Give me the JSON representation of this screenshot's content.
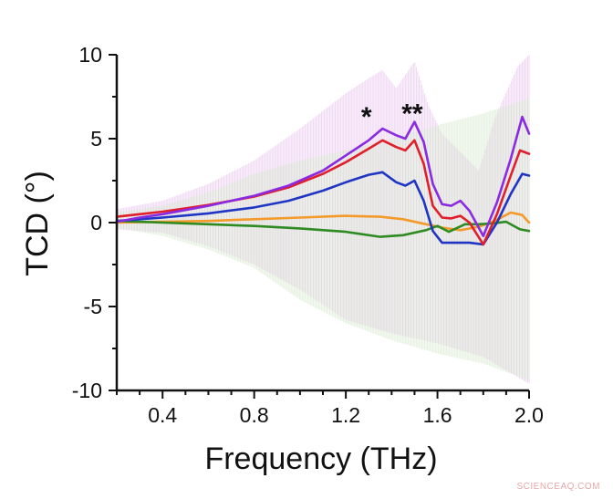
{
  "watermark": "SCIENCEAQ.COM",
  "colors": {
    "red": "#e01f2b",
    "purple": "#8a2be2",
    "blue": "#1f35c4",
    "orange": "#f39a2a",
    "green": "#2e8b22",
    "axis": "#111111"
  },
  "chart_data": {
    "type": "line",
    "xlabel": "Frequency (THz)",
    "ylabel": "TCD (°)",
    "xlim": [
      0.2,
      2.0
    ],
    "ylim": [
      -10,
      10
    ],
    "xticks": [
      0.4,
      0.8,
      1.2,
      1.6,
      2.0
    ],
    "xtick_labels": [
      "0.4",
      "0.8",
      "1.2",
      "1.6",
      "2.0"
    ],
    "yticks": [
      10,
      5,
      0,
      -5,
      -10
    ],
    "ytick_labels": [
      "10",
      "5",
      "0",
      "-5",
      "-10"
    ],
    "grid": false,
    "annotations": [
      {
        "text": "*",
        "x": 1.29,
        "y": 6.4
      },
      {
        "text": "**",
        "x": 1.49,
        "y": 6.6
      }
    ],
    "error_bands": [
      {
        "color": "#e4b8e9",
        "upper": [
          [
            0.2,
            0.8
          ],
          [
            0.4,
            1.3
          ],
          [
            0.6,
            2.3
          ],
          [
            0.8,
            3.7
          ],
          [
            1.0,
            5.6
          ],
          [
            1.2,
            7.7
          ],
          [
            1.3,
            8.6
          ],
          [
            1.36,
            9.1
          ],
          [
            1.42,
            8.0
          ],
          [
            1.5,
            9.6
          ],
          [
            1.56,
            7.0
          ],
          [
            1.62,
            5.3
          ],
          [
            1.7,
            4.2
          ],
          [
            1.78,
            3.1
          ],
          [
            1.85,
            6.2
          ],
          [
            1.95,
            9.3
          ],
          [
            2.0,
            10
          ]
        ],
        "lower": [
          [
            0.2,
            -0.4
          ],
          [
            0.4,
            -0.6
          ],
          [
            0.6,
            -1.4
          ],
          [
            0.8,
            -2.5
          ],
          [
            1.0,
            -4.0
          ],
          [
            1.2,
            -5.8
          ],
          [
            1.4,
            -6.6
          ],
          [
            1.6,
            -7.2
          ],
          [
            1.8,
            -8.0
          ],
          [
            2.0,
            -9.6
          ]
        ]
      },
      {
        "color": "#cfe6c6",
        "upper": [
          [
            0.2,
            0.6
          ],
          [
            0.4,
            1.0
          ],
          [
            0.6,
            1.8
          ],
          [
            0.8,
            2.9
          ],
          [
            1.0,
            3.7
          ],
          [
            1.2,
            4.3
          ],
          [
            1.4,
            5.0
          ],
          [
            1.6,
            5.8
          ],
          [
            1.8,
            6.5
          ],
          [
            2.0,
            7.4
          ]
        ],
        "lower": [
          [
            0.2,
            -0.3
          ],
          [
            0.4,
            -0.8
          ],
          [
            0.6,
            -1.6
          ],
          [
            0.8,
            -2.7
          ],
          [
            1.0,
            -4.6
          ],
          [
            1.2,
            -6.0
          ],
          [
            1.4,
            -7.0
          ],
          [
            1.6,
            -7.8
          ],
          [
            1.8,
            -8.4
          ],
          [
            2.0,
            -9.4
          ]
        ]
      }
    ],
    "series": [
      {
        "color": "#f39a2a",
        "points": [
          [
            0.2,
            0.0
          ],
          [
            0.4,
            0.05
          ],
          [
            0.6,
            0.1
          ],
          [
            0.8,
            0.2
          ],
          [
            1.0,
            0.3
          ],
          [
            1.2,
            0.4
          ],
          [
            1.35,
            0.35
          ],
          [
            1.45,
            0.2
          ],
          [
            1.55,
            -0.1
          ],
          [
            1.62,
            -0.3
          ],
          [
            1.7,
            -0.45
          ],
          [
            1.78,
            -0.25
          ],
          [
            1.85,
            0.1
          ],
          [
            1.92,
            0.6
          ],
          [
            1.97,
            0.45
          ],
          [
            2.0,
            0.0
          ]
        ]
      },
      {
        "color": "#2e8b22",
        "points": [
          [
            0.2,
            0.1
          ],
          [
            0.4,
            0.0
          ],
          [
            0.6,
            -0.1
          ],
          [
            0.8,
            -0.2
          ],
          [
            1.0,
            -0.35
          ],
          [
            1.2,
            -0.55
          ],
          [
            1.35,
            -0.85
          ],
          [
            1.45,
            -0.75
          ],
          [
            1.55,
            -0.45
          ],
          [
            1.6,
            -0.2
          ],
          [
            1.65,
            -0.55
          ],
          [
            1.72,
            -0.1
          ],
          [
            1.78,
            -0.1
          ],
          [
            1.84,
            -0.05
          ],
          [
            1.9,
            0.05
          ],
          [
            1.96,
            -0.4
          ],
          [
            2.0,
            -0.5
          ]
        ]
      },
      {
        "color": "#1f35c4",
        "points": [
          [
            0.2,
            0.1
          ],
          [
            0.3,
            0.2
          ],
          [
            0.4,
            0.3
          ],
          [
            0.6,
            0.55
          ],
          [
            0.8,
            0.9
          ],
          [
            0.95,
            1.3
          ],
          [
            1.1,
            1.9
          ],
          [
            1.2,
            2.4
          ],
          [
            1.3,
            2.85
          ],
          [
            1.36,
            3.0
          ],
          [
            1.42,
            2.4
          ],
          [
            1.46,
            2.2
          ],
          [
            1.5,
            2.5
          ],
          [
            1.54,
            1.3
          ],
          [
            1.58,
            -0.5
          ],
          [
            1.62,
            -1.2
          ],
          [
            1.68,
            -1.2
          ],
          [
            1.74,
            -1.2
          ],
          [
            1.8,
            -1.3
          ],
          [
            1.86,
            0.0
          ],
          [
            1.92,
            1.7
          ],
          [
            1.97,
            2.9
          ],
          [
            2.0,
            2.8
          ]
        ]
      },
      {
        "color": "#e01f2b",
        "points": [
          [
            0.2,
            0.35
          ],
          [
            0.3,
            0.5
          ],
          [
            0.4,
            0.65
          ],
          [
            0.5,
            0.85
          ],
          [
            0.6,
            1.05
          ],
          [
            0.8,
            1.55
          ],
          [
            0.95,
            2.1
          ],
          [
            1.1,
            2.9
          ],
          [
            1.2,
            3.6
          ],
          [
            1.3,
            4.4
          ],
          [
            1.36,
            4.9
          ],
          [
            1.42,
            4.5
          ],
          [
            1.46,
            4.3
          ],
          [
            1.5,
            4.9
          ],
          [
            1.54,
            3.5
          ],
          [
            1.58,
            1.0
          ],
          [
            1.62,
            0.3
          ],
          [
            1.66,
            0.25
          ],
          [
            1.7,
            0.4
          ],
          [
            1.74,
            0.0
          ],
          [
            1.8,
            -1.3
          ],
          [
            1.86,
            0.5
          ],
          [
            1.92,
            2.8
          ],
          [
            1.96,
            4.3
          ],
          [
            2.0,
            4.1
          ]
        ]
      },
      {
        "color": "#8a2be2",
        "points": [
          [
            0.2,
            0.05
          ],
          [
            0.3,
            0.3
          ],
          [
            0.4,
            0.5
          ],
          [
            0.5,
            0.75
          ],
          [
            0.6,
            1.0
          ],
          [
            0.8,
            1.6
          ],
          [
            0.95,
            2.2
          ],
          [
            1.1,
            3.1
          ],
          [
            1.2,
            4.0
          ],
          [
            1.3,
            4.9
          ],
          [
            1.36,
            5.6
          ],
          [
            1.42,
            5.2
          ],
          [
            1.46,
            5.0
          ],
          [
            1.5,
            6.0
          ],
          [
            1.54,
            4.8
          ],
          [
            1.58,
            2.3
          ],
          [
            1.62,
            1.1
          ],
          [
            1.66,
            1.0
          ],
          [
            1.7,
            1.3
          ],
          [
            1.74,
            0.7
          ],
          [
            1.8,
            -0.8
          ],
          [
            1.86,
            1.2
          ],
          [
            1.92,
            3.8
          ],
          [
            1.97,
            6.3
          ],
          [
            2.0,
            5.3
          ]
        ]
      }
    ]
  }
}
